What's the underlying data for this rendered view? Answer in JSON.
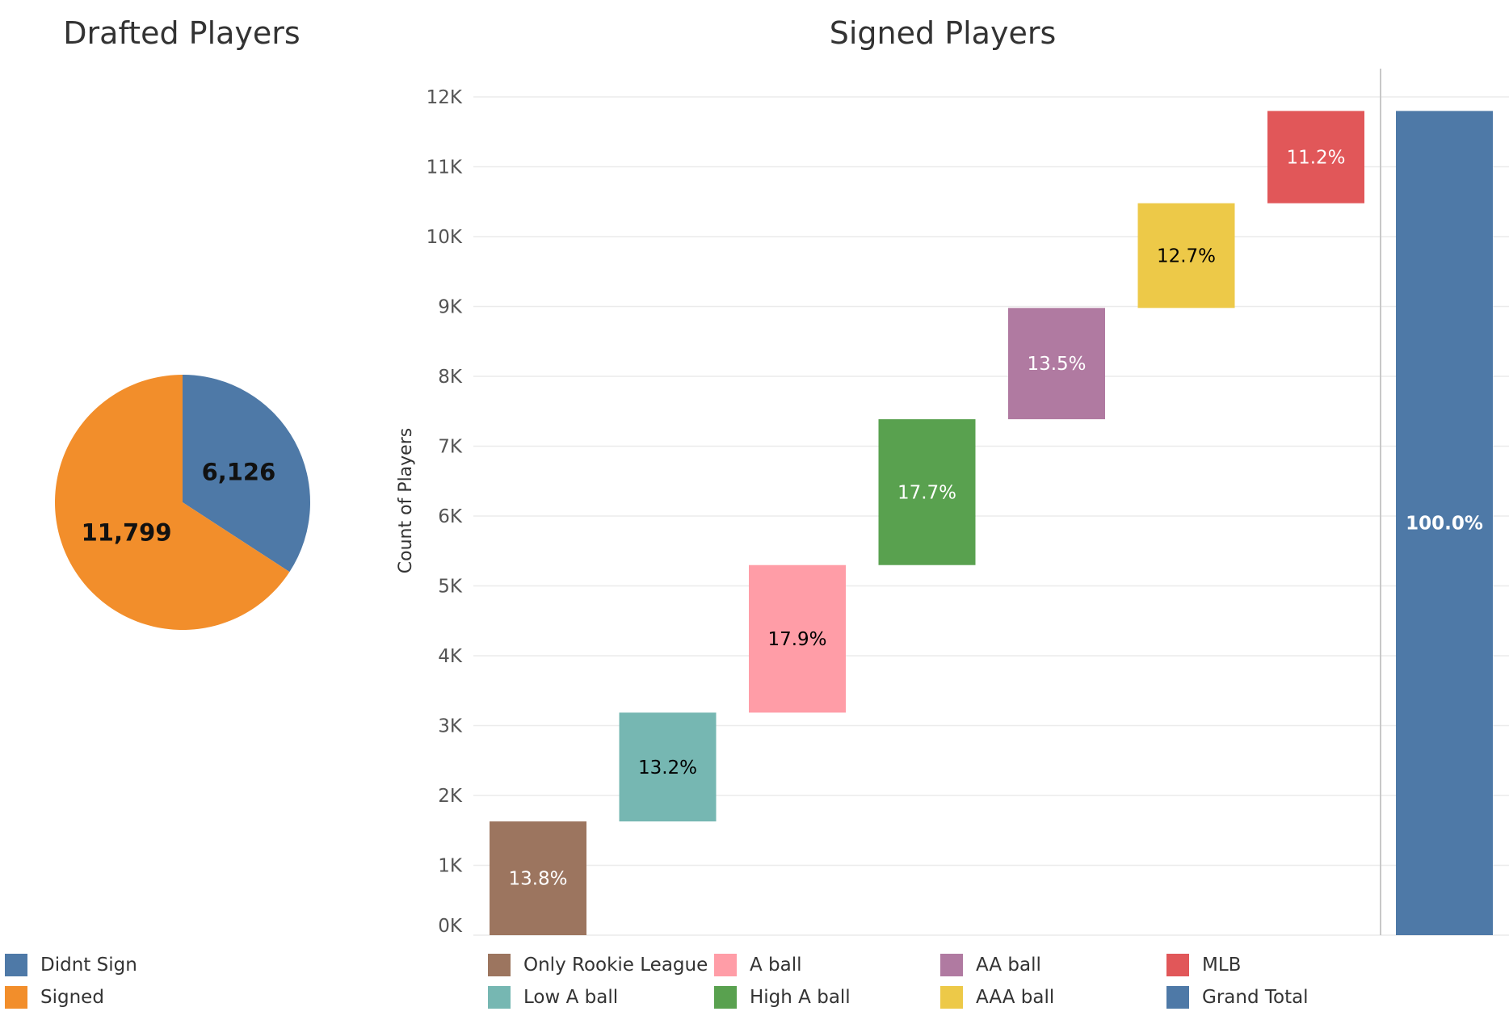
{
  "colors": {
    "Didnt Sign": "#4e79a7",
    "Signed": "#f28e2b",
    "Only Rookie League": "#9c755f",
    "Low A ball": "#76b7b2",
    "A ball": "#ff9da7",
    "High A ball": "#59a14f",
    "AA ball": "#b07aa1",
    "AAA ball": "#edc948",
    "MLB": "#e15759",
    "Grand Total": "#4e79a7"
  },
  "chart_data": [
    {
      "type": "pie",
      "title": "Drafted Players",
      "slices": [
        {
          "name": "Didnt Sign",
          "value": 6126,
          "label": "6,126"
        },
        {
          "name": "Signed",
          "value": 11799,
          "label": "11,799"
        }
      ],
      "legend": [
        "Didnt Sign",
        "Signed"
      ],
      "legend_position": "bottom-left"
    },
    {
      "type": "bar",
      "subtype": "waterfall",
      "title": "Signed Players",
      "ylabel": "Count of Players",
      "ylim": [
        0,
        12000
      ],
      "yticks": [
        0,
        1000,
        2000,
        3000,
        4000,
        5000,
        6000,
        7000,
        8000,
        9000,
        10000,
        11000,
        12000
      ],
      "ytick_labels": [
        "0K",
        "1K",
        "2K",
        "3K",
        "4K",
        "5K",
        "6K",
        "7K",
        "8K",
        "9K",
        "10K",
        "11K",
        "12K"
      ],
      "grid": true,
      "categories": [
        "Only Rookie League",
        "Low A ball",
        "A ball",
        "High A ball",
        "AA ball",
        "AAA ball",
        "MLB",
        "Grand Total"
      ],
      "bars": [
        {
          "name": "Only Rookie League",
          "start": 0,
          "end": 1628,
          "label": "13.8%",
          "label_color": "#ffffff"
        },
        {
          "name": "Low A ball",
          "start": 1628,
          "end": 3186,
          "label": "13.2%",
          "label_color": "#000000"
        },
        {
          "name": "A ball",
          "start": 3186,
          "end": 5298,
          "label": "17.9%",
          "label_color": "#000000"
        },
        {
          "name": "High A ball",
          "start": 5298,
          "end": 7386,
          "label": "17.7%",
          "label_color": "#ffffff"
        },
        {
          "name": "AA ball",
          "start": 7386,
          "end": 8979,
          "label": "13.5%",
          "label_color": "#ffffff"
        },
        {
          "name": "AAA ball",
          "start": 8979,
          "end": 10478,
          "label": "12.7%",
          "label_color": "#000000"
        },
        {
          "name": "MLB",
          "start": 10478,
          "end": 11799,
          "label": "11.2%",
          "label_color": "#ffffff"
        },
        {
          "name": "Grand Total",
          "start": 0,
          "end": 11799,
          "label": "100.0%",
          "label_color": "#ffffff",
          "label_bold": true
        }
      ],
      "legend": [
        "Only Rookie League",
        "Low A ball",
        "A ball",
        "High A ball",
        "AA ball",
        "AAA ball",
        "MLB",
        "Grand Total"
      ],
      "legend_position": "bottom"
    }
  ]
}
